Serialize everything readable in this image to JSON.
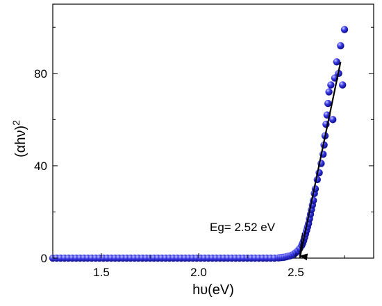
{
  "chart_data": {
    "type": "scatter",
    "xlabel": "hυ(eV)",
    "ylabel_base": "(αhν)",
    "ylabel_sup": "2",
    "xlim": [
      1.25,
      2.9
    ],
    "ylim": [
      0,
      110
    ],
    "x_ticks": [
      1.5,
      2.0,
      2.5
    ],
    "x_tick_labels": [
      "1.5",
      "2.0",
      "2.5"
    ],
    "y_ticks": [
      0,
      40,
      80
    ],
    "y_tick_labels": [
      "0",
      "40",
      "80"
    ],
    "grid": false,
    "annotation": {
      "text": "Eg= 2.52 eV",
      "arrow_to": [
        2.52,
        0
      ]
    },
    "fit_line": {
      "x": [
        2.52,
        2.73
      ],
      "y": [
        0,
        85
      ]
    },
    "marker_color": "#2a2ad8",
    "series": [
      {
        "x": [
          1.25,
          1.27,
          1.29,
          1.31,
          1.33,
          1.35,
          1.37,
          1.39,
          1.41,
          1.43,
          1.45,
          1.47,
          1.49,
          1.51,
          1.53,
          1.55,
          1.57,
          1.59,
          1.61,
          1.63,
          1.65,
          1.67,
          1.69,
          1.71,
          1.73,
          1.75,
          1.77,
          1.79,
          1.81,
          1.83,
          1.85,
          1.87,
          1.89,
          1.91,
          1.93,
          1.95,
          1.97,
          1.99,
          2.01,
          2.03,
          2.05,
          2.07,
          2.09,
          2.11,
          2.13,
          2.15,
          2.17,
          2.19,
          2.21,
          2.23,
          2.25,
          2.27,
          2.29,
          2.31,
          2.33,
          2.35,
          2.37,
          2.39,
          2.41,
          2.42,
          2.43,
          2.44,
          2.45,
          2.46,
          2.47,
          2.48,
          2.49,
          2.5,
          2.51,
          2.52,
          2.53,
          2.535,
          2.54,
          2.545,
          2.55,
          2.555,
          2.56,
          2.565,
          2.57,
          2.575,
          2.58,
          2.585,
          2.59,
          2.595,
          2.6,
          2.61,
          2.62,
          2.63,
          2.64,
          2.645,
          2.65,
          2.655,
          2.66,
          2.665,
          2.67,
          2.68,
          2.69,
          2.7,
          2.71,
          2.72,
          2.73,
          2.74,
          2.75
        ],
        "y": [
          0,
          0,
          0,
          0,
          0,
          0,
          0,
          0,
          0,
          0,
          0,
          0,
          0,
          0,
          0,
          0,
          0,
          0,
          0,
          0,
          0,
          0,
          0,
          0,
          0,
          0,
          0,
          0,
          0,
          0,
          0,
          0,
          0,
          0,
          0,
          0,
          0,
          0,
          0,
          0,
          0,
          0,
          0,
          0,
          0,
          0,
          0,
          0,
          0,
          0,
          0,
          0,
          0,
          0,
          0,
          0,
          0,
          0,
          0.1,
          0.2,
          0.3,
          0.4,
          0.6,
          0.8,
          1.0,
          1.3,
          1.8,
          2.4,
          3.2,
          4.2,
          5.5,
          6.5,
          7.6,
          9,
          10.5,
          12,
          13.5,
          15,
          17,
          19,
          21,
          23,
          25,
          28,
          30,
          34,
          37,
          41,
          45,
          49,
          53,
          58,
          62,
          67,
          72,
          75,
          60,
          78,
          85,
          80,
          92,
          75,
          99
        ]
      }
    ]
  }
}
